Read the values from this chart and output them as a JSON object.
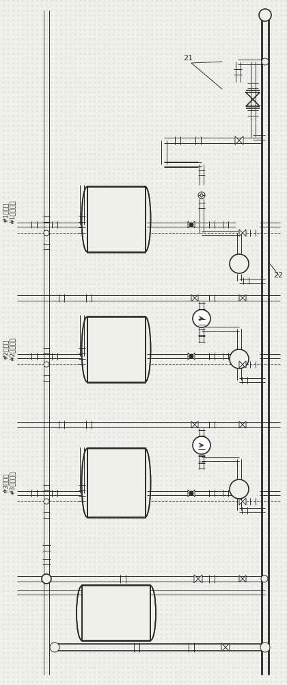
{
  "bg_color": "#f0f0eb",
  "line_color": "#2a2a2a",
  "dashed_color": "#444444",
  "text_color": "#222222",
  "label_21": "21",
  "label_22": "22",
  "label_unit1": "#1凝结水",
  "label_unit2": "#2凝结水",
  "label_unit3": "#3凝结水",
  "label_fine1": "#1精处进水",
  "label_fine2": "#2精处进水",
  "label_fine3": "#3精处进水",
  "figsize": [
    4.2,
    10.0
  ],
  "dpi": 100
}
